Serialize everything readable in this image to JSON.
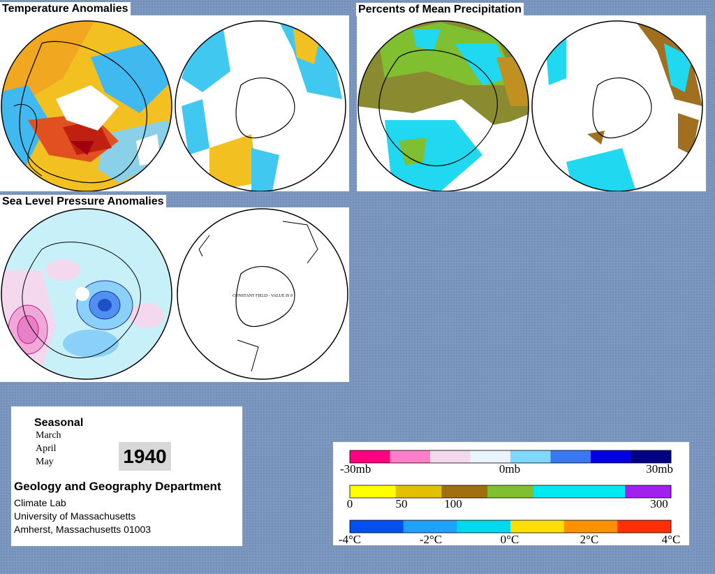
{
  "panels": {
    "temperature": {
      "title": "Temperature Anomalies"
    },
    "precipitation": {
      "title": "Percents of Mean Precipitation"
    },
    "pressure": {
      "title": "Sea Level Pressure Anomalies",
      "south_note": "CONSTANT FIELD - VALUE IS 0"
    }
  },
  "info": {
    "season_label": "Seasonal",
    "months": [
      "March",
      "April",
      "May"
    ],
    "year": "1940",
    "department": "Geology and Geography Department",
    "lines": [
      "Climate Lab",
      "University of Massachusetts",
      "Amherst, Massachusetts 01003"
    ]
  },
  "legend": {
    "pressure_scale": {
      "labels": [
        "-30mb",
        "0mb",
        "30mb"
      ],
      "colors": [
        "#ff0080",
        "#ff80c8",
        "#f4d8ee",
        "#e8f4ff",
        "#80d8ff",
        "#3a78f0",
        "#0000e0",
        "#000080"
      ]
    },
    "precip_scale": {
      "labels": [
        "0",
        "50",
        "100",
        "300"
      ],
      "colors": [
        "#ffff00",
        "#e0c000",
        "#a07010",
        "#7fbf30",
        "#00e8f0",
        "#00e8f0",
        "#a020f0"
      ]
    },
    "temp_scale": {
      "labels": [
        "-4°C",
        "-2°C",
        "0°C",
        "2°C",
        "4°C"
      ],
      "colors": [
        "#0050f0",
        "#20a0ff",
        "#00d8f0",
        "#ffe000",
        "#ff9000",
        "#ff3000"
      ]
    }
  }
}
